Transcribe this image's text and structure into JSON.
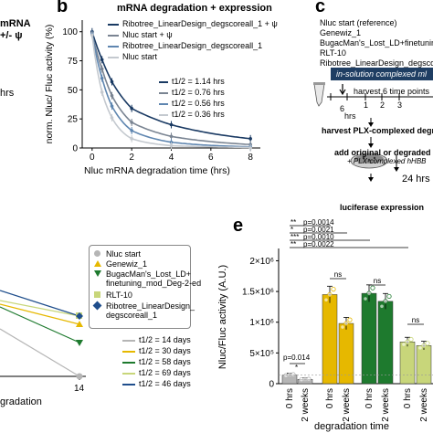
{
  "panel_a_fragment": {
    "lines": [
      "mRNA",
      "+/- ψ",
      "hrs"
    ]
  },
  "panel_b": {
    "letter": "b",
    "title": "mRNA degradation + expression",
    "ylabel": "norm. Nluc/ Fluc activity (%)",
    "xlabel": "Nluc mRNA degradation time (hrs)",
    "legend": [
      {
        "label": "Ribotree_LinearDesign_degscoreall_1 + ψ",
        "color": "#1a3a63"
      },
      {
        "label": "Nluc start + ψ",
        "color": "#7a8492"
      },
      {
        "label": "Ribotree_LinearDesign_degscoreall_1",
        "color": "#5f86b0"
      },
      {
        "label": "Nluc start",
        "color": "#c4c9cf"
      }
    ],
    "halflife": [
      {
        "label": "t1/2 = 1.14 hrs",
        "color": "#1a3a63"
      },
      {
        "label": "t1/2 = 0.76 hrs",
        "color": "#7a8492"
      },
      {
        "label": "t1/2 = 0.56 hrs",
        "color": "#5f86b0"
      },
      {
        "label": "t1/2 = 0.36 hrs",
        "color": "#c4c9cf"
      }
    ]
  },
  "panel_c": {
    "letter": "c",
    "legend": [
      "Nluc start (reference)",
      "Genewiz_1",
      "BugacMan's_Lost_LD+finetuning",
      "RLT-10",
      "Ribotree_LinearDesign_degscorea"
    ],
    "banner": "in-solution complexed ml",
    "harvest_text": "harvest 6 time points",
    "timeline_ticks": [
      "6",
      "1",
      "2",
      "3"
    ],
    "timeline_unit": "hrs",
    "step1": "harvest PLX-complexed degra",
    "step2": "add original or degraded PLX",
    "step2b": "+ PLX-complexed hHBB",
    "step3_time": "24 hrs",
    "step4": "luciferase expression"
  },
  "panel_d": {
    "legend": [
      {
        "label": "Nluc start",
        "color": "#b5b5b5",
        "marker": "circle"
      },
      {
        "label": "Genewiz_1",
        "color": "#e6b800",
        "marker": "triangle"
      },
      {
        "label": "BugacMan's_Lost_LD+",
        "label2": "finetuning_mod_Deg-2-ed",
        "color": "#1e7a2e",
        "marker": "triangle-down"
      },
      {
        "label": "RLT-10",
        "color": "#c8d67a",
        "marker": "square"
      },
      {
        "label": "Ribotree_LinearDesign_",
        "label2": "degscoreall_1",
        "color": "#1f4e8c",
        "marker": "diamond"
      }
    ],
    "halflife": [
      {
        "label": "t1/2 = 14 days",
        "color": "#b5b5b5"
      },
      {
        "label": "t1/2 = 30 days",
        "color": "#e6b800"
      },
      {
        "label": "t1/2 = 58 days",
        "color": "#1e7a2e"
      },
      {
        "label": "t1/2 = 69 days",
        "color": "#c8d67a"
      },
      {
        "label": "t1/2 = 46 days",
        "color": "#1f4e8c"
      }
    ],
    "xtick": "14",
    "xlabel": "gradation"
  },
  "panel_e": {
    "letter": "e",
    "ylabel": "Nluc/Fluc activity (A.U.)",
    "xlabel": "degradation time",
    "yticks": [
      "0",
      "5×10⁵",
      "1×10⁶",
      "1.5×10⁶",
      "2×10⁶"
    ],
    "xticks": [
      "0 hrs",
      "2 weeks",
      "0 hrs",
      "2 weeks",
      "0 hrs",
      "2 weeks",
      "0 hrs",
      "2 weeks"
    ],
    "sig": [
      {
        "stars": "**",
        "p": "p=0.0014"
      },
      {
        "stars": "*",
        "p": "p=0.0021"
      },
      {
        "stars": "***",
        "p": "p=0.0010"
      },
      {
        "stars": "**",
        "p": "p=0.0022"
      }
    ],
    "ns": "ns",
    "p_small": "p=0.014",
    "star_small": "*"
  },
  "chart_data": [
    {
      "type": "line",
      "title": "mRNA degradation + expression",
      "xlabel": "Nluc mRNA degradation time (hrs)",
      "ylabel": "norm. Nluc/ Fluc activity (%)",
      "xlim": [
        -0.5,
        8.5
      ],
      "ylim": [
        0,
        110
      ],
      "xticks": [
        0,
        2,
        4,
        6,
        8
      ],
      "yticks": [
        0,
        25,
        50,
        75,
        100
      ],
      "series": [
        {
          "name": "Ribotree_LinearDesign_degscoreall_1 + ψ",
          "color": "#1a3a63",
          "x": [
            0,
            0.5,
            1,
            2,
            4,
            8
          ],
          "y": [
            100,
            76,
            57,
            34,
            20,
            8
          ]
        },
        {
          "name": "Nluc start + ψ",
          "color": "#7a8492",
          "x": [
            0,
            0.5,
            1,
            2,
            4,
            8
          ],
          "y": [
            98,
            68,
            45,
            22,
            10,
            3
          ]
        },
        {
          "name": "Ribotree_LinearDesign_degscoreall_1",
          "color": "#5f86b0",
          "x": [
            0,
            0.5,
            1,
            2,
            4,
            8
          ],
          "y": [
            98,
            60,
            36,
            15,
            5,
            1
          ]
        },
        {
          "name": "Nluc start",
          "color": "#c4c9cf",
          "x": [
            0,
            0.5,
            1,
            2,
            4,
            8
          ],
          "y": [
            97,
            48,
            26,
            8,
            2,
            0
          ]
        }
      ]
    },
    {
      "type": "bar",
      "xlabel": "degradation time",
      "ylabel": "Nluc/Fluc activity (A.U.)",
      "ylim": [
        0,
        2200000
      ],
      "categories": [
        "0 hrs",
        "2 weeks",
        "0 hrs",
        "2 weeks",
        "0 hrs",
        "2 weeks",
        "0 hrs",
        "2 weeks"
      ],
      "values": [
        140000,
        70000,
        1450000,
        980000,
        1470000,
        1340000,
        680000,
        620000
      ],
      "colors": [
        "#b5b5b5",
        "#b5b5b5",
        "#e6b800",
        "#e6b800",
        "#1e7a2e",
        "#1e7a2e",
        "#c8d67a",
        "#c8d67a"
      ]
    }
  ]
}
